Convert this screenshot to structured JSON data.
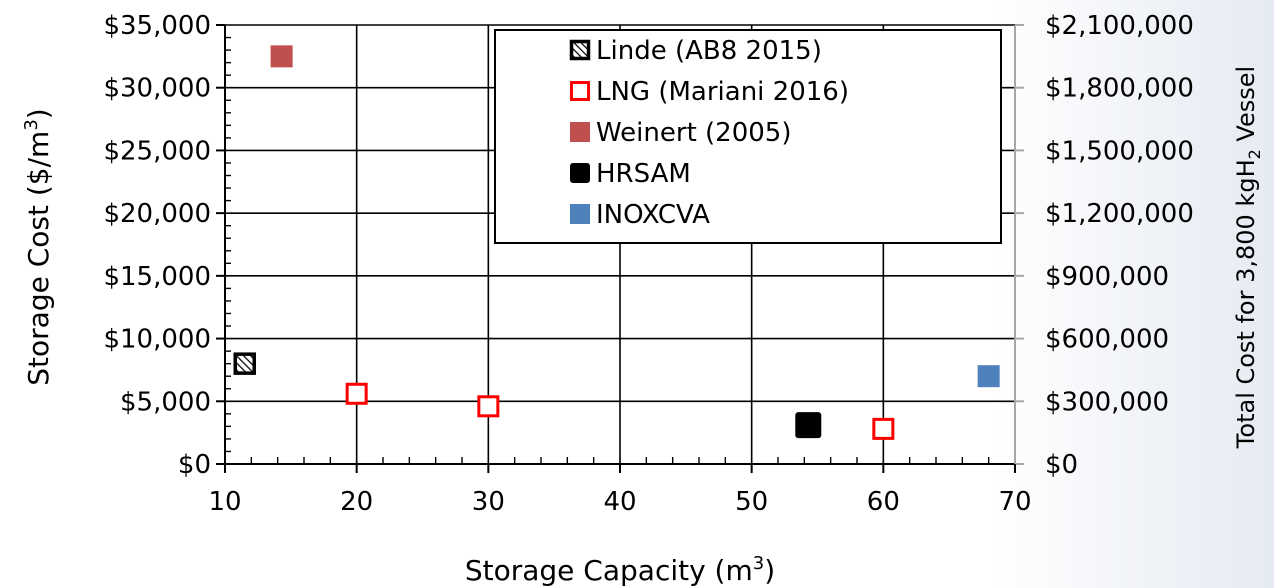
{
  "chart_data": {
    "type": "scatter",
    "x_axis": {
      "title": "Storage Capacity (m",
      "title_sup": "3",
      "title_end": ")",
      "min": 10,
      "max": 70,
      "major_step": 10,
      "minor_step": 2,
      "tick_labels": [
        "10",
        "20",
        "30",
        "40",
        "50",
        "60",
        "70"
      ]
    },
    "y_axis_left": {
      "title": "Storage Cost ($/m",
      "title_sup": "3",
      "title_end": ")",
      "min": 0,
      "max": 35000,
      "step": 5000,
      "tick_labels": [
        "$0",
        "$5,000",
        "$10,000",
        "$15,000",
        "$20,000",
        "$25,000",
        "$30,000",
        "$35,000"
      ]
    },
    "y_axis_right": {
      "title": "Total Cost for 3,800 kgH",
      "title_sub": "2",
      "title_end": " Vessel",
      "min": 0,
      "max": 2100000,
      "step": 300000,
      "tick_labels": [
        "$0",
        "$300,000",
        "$600,000",
        "$900,000",
        "$1,200,000",
        "$1,500,000",
        "$1,800,000",
        "$2,100,000"
      ]
    },
    "grid": true,
    "legend_position": "top-center",
    "series": [
      {
        "name": "Linde (AB8 2015)",
        "marker": "hatched-square",
        "color": "#000000",
        "points": [
          {
            "x": 11.5,
            "y": 8000
          }
        ]
      },
      {
        "name": "LNG (Mariani 2016)",
        "marker": "open-square",
        "color": "#ff0000",
        "points": [
          {
            "x": 20,
            "y": 5600
          },
          {
            "x": 30,
            "y": 4600
          },
          {
            "x": 60,
            "y": 2800
          }
        ]
      },
      {
        "name": "Weinert (2005)",
        "marker": "filled-square",
        "color": "#c0504d",
        "points": [
          {
            "x": 14.3,
            "y": 32500
          }
        ]
      },
      {
        "name": "HRSAM",
        "marker": "filled-square",
        "color": "#000000",
        "points": [
          {
            "x": 54.3,
            "y": 3100
          }
        ]
      },
      {
        "name": "INOXCVA",
        "marker": "filled-square",
        "color": "#4f81bd",
        "points": [
          {
            "x": 68,
            "y": 7000
          }
        ]
      }
    ]
  }
}
